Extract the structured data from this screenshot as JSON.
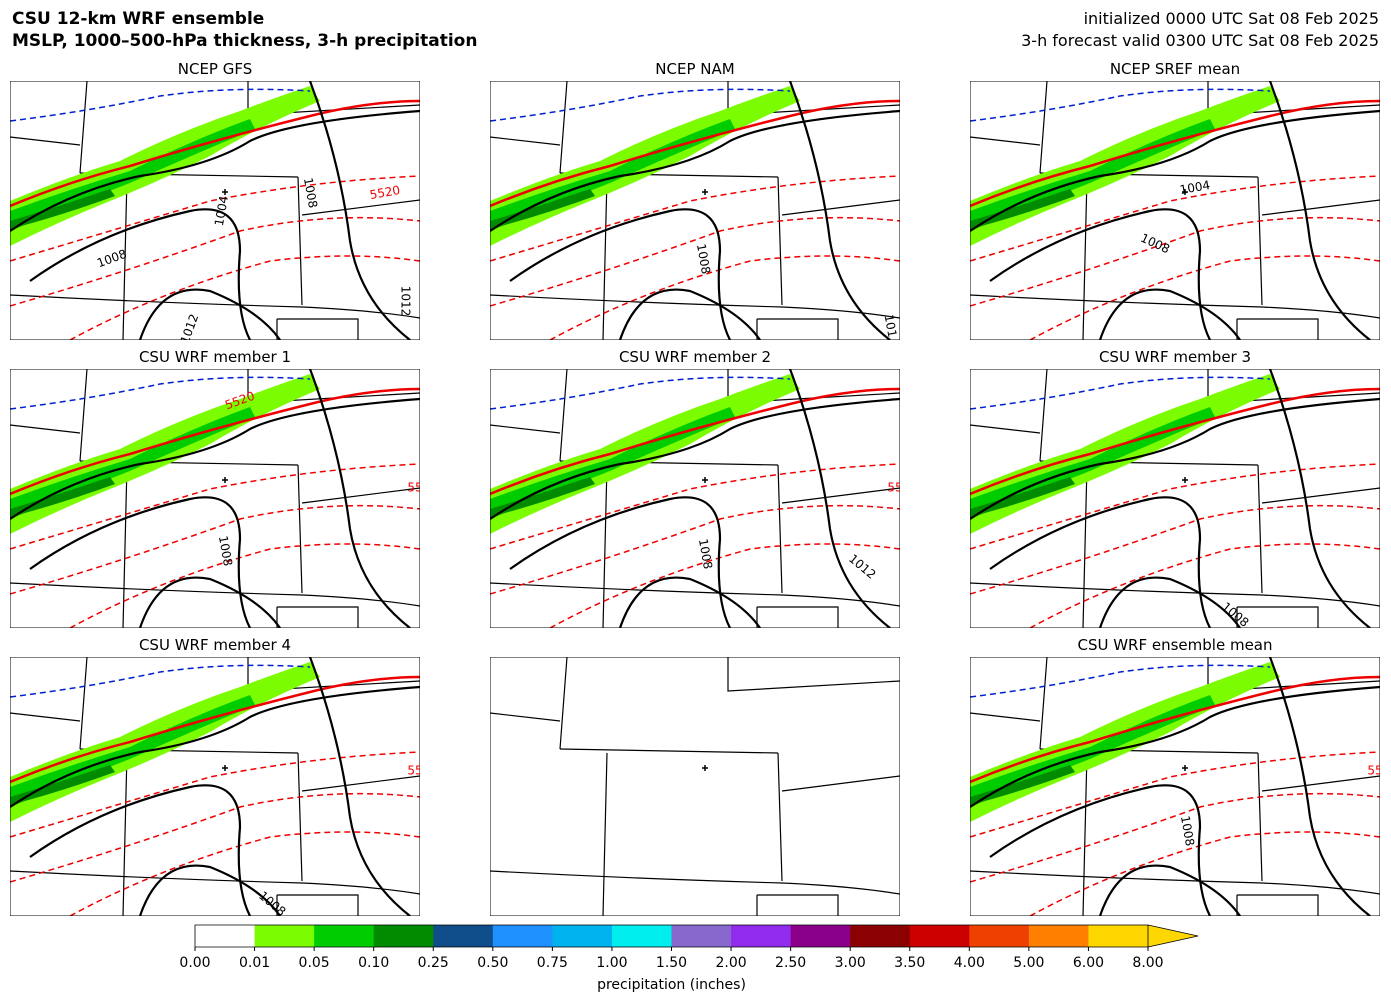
{
  "header": {
    "title_lines": [
      "CSU 12-km WRF ensemble",
      "MSLP, 1000–500-hPa thickness, 3-h precipitation"
    ],
    "info_lines": [
      "initialized 0000 UTC Sat 08 Feb 2025",
      "3-h forecast valid 0300 UTC Sat 08 Feb 2025"
    ]
  },
  "panels": [
    {
      "title": "NCEP GFS",
      "labels": [
        "5520",
        "1004",
        "1008",
        "1008",
        "1012",
        "1012"
      ]
    },
    {
      "title": "NCEP NAM",
      "labels": [
        "1008",
        "101"
      ]
    },
    {
      "title": "NCEP SREF mean",
      "labels": [
        "1004",
        "1008"
      ]
    },
    {
      "title": "CSU WRF member 1",
      "labels": [
        "5520",
        "55",
        "1008"
      ]
    },
    {
      "title": "CSU WRF member 2",
      "labels": [
        "55",
        "1008",
        "1012"
      ]
    },
    {
      "title": "CSU WRF member 3",
      "labels": [
        "1008"
      ]
    },
    {
      "title": "CSU WRF member 4",
      "labels": [
        "55",
        "1008"
      ]
    },
    {
      "title": "CSU WRF ensemble mean",
      "labels": [
        "55",
        "1008"
      ]
    }
  ],
  "colorbar": {
    "label": "precipitation (inches)",
    "ticks": [
      "0.00",
      "0.01",
      "0.05",
      "0.10",
      "0.25",
      "0.50",
      "0.75",
      "1.00",
      "1.50",
      "2.00",
      "2.50",
      "3.00",
      "3.50",
      "4.00",
      "5.00",
      "6.00",
      "8.00"
    ],
    "colors": [
      "#ffffff",
      "#7cfc00",
      "#00cd00",
      "#008b00",
      "#104e8b",
      "#1e90ff",
      "#00b2ee",
      "#00eeee",
      "#8968cd",
      "#912cee",
      "#8b008b",
      "#8b0000",
      "#cd0000",
      "#ee4000",
      "#ff7f00",
      "#ffd700"
    ],
    "extend_color": "#ffd700"
  }
}
